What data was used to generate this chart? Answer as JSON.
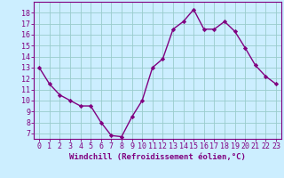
{
  "x": [
    0,
    1,
    2,
    3,
    4,
    5,
    6,
    7,
    8,
    9,
    10,
    11,
    12,
    13,
    14,
    15,
    16,
    17,
    18,
    19,
    20,
    21,
    22,
    23
  ],
  "y": [
    13.0,
    11.5,
    10.5,
    10.0,
    9.5,
    9.5,
    8.0,
    6.8,
    6.7,
    8.5,
    10.0,
    13.0,
    13.8,
    16.5,
    17.2,
    18.3,
    16.5,
    16.5,
    17.2,
    16.3,
    14.8,
    13.2,
    12.2,
    11.5
  ],
  "line_color": "#800080",
  "marker": "D",
  "marker_size": 2.2,
  "background_color": "#cceeff",
  "grid_color": "#99cccc",
  "xlabel": "Windchill (Refroidissement éolien,°C)",
  "ylim": [
    6.5,
    19.0
  ],
  "xlim": [
    -0.5,
    23.5
  ],
  "yticks": [
    7,
    8,
    9,
    10,
    11,
    12,
    13,
    14,
    15,
    16,
    17,
    18
  ],
  "xticks": [
    0,
    1,
    2,
    3,
    4,
    5,
    6,
    7,
    8,
    9,
    10,
    11,
    12,
    13,
    14,
    15,
    16,
    17,
    18,
    19,
    20,
    21,
    22,
    23
  ],
  "axis_color": "#800080",
  "tick_color": "#800080",
  "xlabel_color": "#800080",
  "xlabel_fontsize": 6.5,
  "tick_fontsize": 6.0,
  "line_width": 1.0
}
